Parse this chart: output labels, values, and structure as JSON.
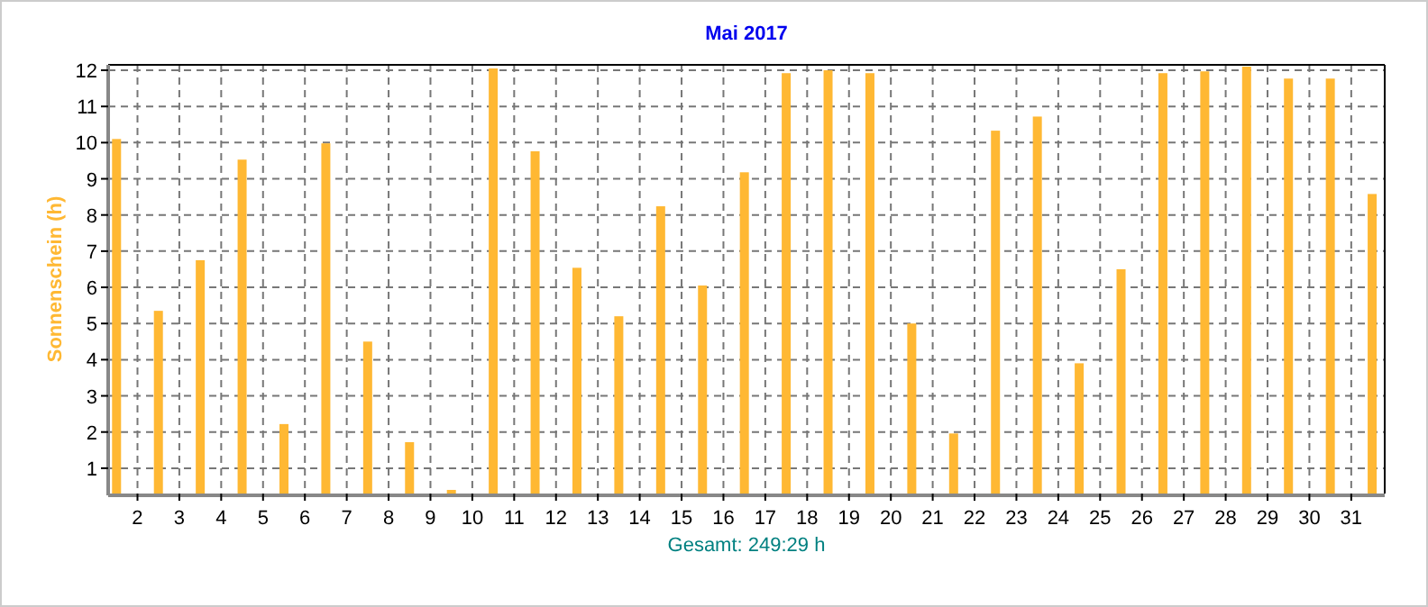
{
  "chart_data": {
    "type": "bar",
    "title": "Mai 2017",
    "ylabel": "Sonnenschein  (h)",
    "annotations": [
      "Gesamt: 249:29 h"
    ],
    "x": [
      1.5,
      2.5,
      3.5,
      4.5,
      5.5,
      6.5,
      7.5,
      8.5,
      9.5,
      10.5,
      11.5,
      12.5,
      13.5,
      14.5,
      15.5,
      16.5,
      17.5,
      18.5,
      19.5,
      20.5,
      21.5,
      22.5,
      23.5,
      24.5,
      25.5,
      26.5,
      27.5,
      28.5,
      29.5,
      30.5,
      31.5
    ],
    "series": [
      {
        "color": "#ffb833",
        "values": [
          10.1,
          5.35,
          6.75,
          9.53,
          2.22,
          9.98,
          4.5,
          1.72,
          0.4,
          12.05,
          9.76,
          6.54,
          5.2,
          8.24,
          6.05,
          9.18,
          11.92,
          12.0,
          11.92,
          5.0,
          1.96,
          10.33,
          10.72,
          3.9,
          6.5,
          11.92,
          11.97,
          12.1,
          11.77,
          11.77,
          8.58
        ]
      }
    ],
    "xlim": [
      1.3,
      31.8
    ],
    "xticks": [
      2,
      3,
      4,
      5,
      6,
      7,
      8,
      9,
      10,
      11,
      12,
      13,
      14,
      15,
      16,
      17,
      18,
      19,
      20,
      21,
      22,
      23,
      24,
      25,
      26,
      27,
      28,
      29,
      30,
      31
    ],
    "ylim": [
      0.3,
      12.15
    ],
    "yticks": [
      1,
      2,
      3,
      4,
      5,
      6,
      7,
      8,
      9,
      10,
      11,
      12
    ],
    "grid": true
  }
}
